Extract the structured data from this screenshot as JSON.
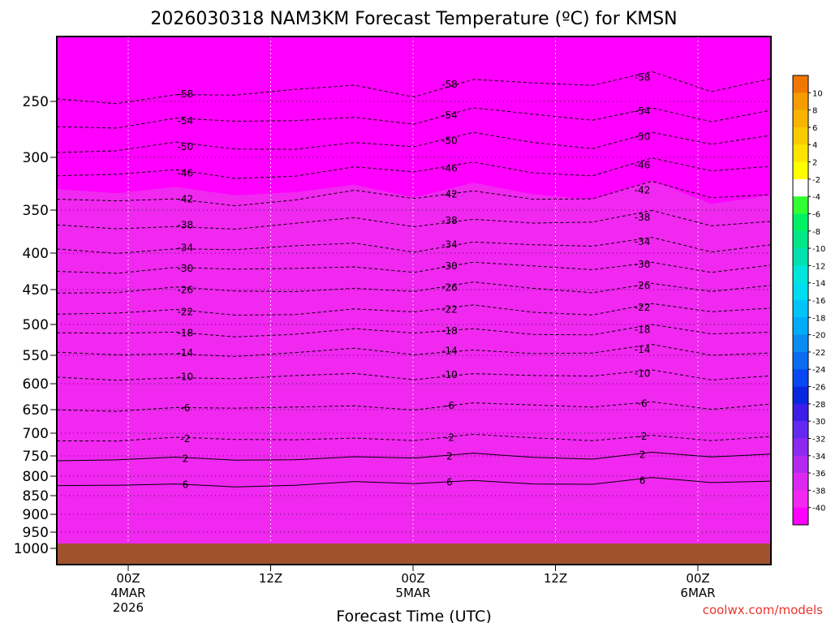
{
  "chart_data": {
    "type": "heatmap",
    "title": "2026030318 NAM3KM Forecast Temperature (ºC) for KMSN",
    "xlabel": "Forecast Time (UTC)",
    "credit": "coolwx.com/models",
    "y_levels": [
      "250",
      "300",
      "350",
      "400",
      "450",
      "500",
      "550",
      "600",
      "650",
      "700",
      "750",
      "800",
      "850",
      "900",
      "950",
      "1000"
    ],
    "y_range": [
      200,
      1000
    ],
    "x_ticks": [
      {
        "lines": [
          "00Z",
          "4MAR",
          "2026"
        ]
      },
      {
        "lines": [
          "12Z"
        ]
      },
      {
        "lines": [
          "00Z",
          "5MAR"
        ]
      },
      {
        "lines": [
          "12Z"
        ]
      },
      {
        "lines": [
          "00Z",
          "6MAR"
        ]
      }
    ],
    "colorbar": {
      "labels": [
        "10",
        "8",
        "6",
        "4",
        "2",
        "-2",
        "-4",
        "-6",
        "-8",
        "-10",
        "-12",
        "-14",
        "-16",
        "-18",
        "-20",
        "-22",
        "-24",
        "-26",
        "-28",
        "-30",
        "-32",
        "-34",
        "-36",
        "-38",
        "-40"
      ],
      "colors": [
        "#f07800",
        "#f59c00",
        "#f8b400",
        "#facc00",
        "#fce400",
        "#ffff00",
        "#ffffff",
        "#32ff32",
        "#00f064",
        "#00e688",
        "#00e0b0",
        "#00e6dc",
        "#00dcf0",
        "#00c4f8",
        "#00acf8",
        "#0a8cf0",
        "#0a6cf0",
        "#0848f0",
        "#0828e0",
        "#3c1ee6",
        "#6428f0",
        "#8c28f0",
        "#b428f0",
        "#dc28f0",
        "#f028f0",
        "#ff00ff"
      ]
    },
    "contour_labels": [
      {
        "value": "-58",
        "pressures": [
          248,
          228
        ]
      },
      {
        "value": "-54",
        "pressures": [
          270,
          256
        ]
      },
      {
        "value": "-50",
        "pressures": [
          293,
          279
        ]
      },
      {
        "value": "-46",
        "pressures": [
          317,
          305
        ]
      },
      {
        "value": "-42",
        "pressures": [
          342,
          329
        ]
      },
      {
        "value": "-38",
        "pressures": [
          370,
          356
        ]
      },
      {
        "value": "-34",
        "pressures": [
          396,
          385
        ]
      },
      {
        "value": "-30",
        "pressures": [
          423,
          414
        ]
      },
      {
        "value": "-26",
        "pressures": [
          452,
          443
        ]
      },
      {
        "value": "-22",
        "pressures": [
          484,
          474
        ]
      },
      {
        "value": "-18",
        "pressures": [
          515,
          507
        ]
      },
      {
        "value": "-14",
        "pressures": [
          548,
          539
        ]
      },
      {
        "value": "-10",
        "pressures": [
          590,
          580
        ]
      },
      {
        "value": "-6",
        "pressures": [
          649,
          636
        ]
      },
      {
        "value": "-2",
        "pressures": [
          714,
          706
        ]
      },
      {
        "value": "2",
        "pressures": [
          760,
          744
        ]
      },
      {
        "value": "6",
        "pressures": [
          825,
          808
        ]
      }
    ]
  },
  "icons": {
    "terrain": "ground-terrain-band"
  }
}
